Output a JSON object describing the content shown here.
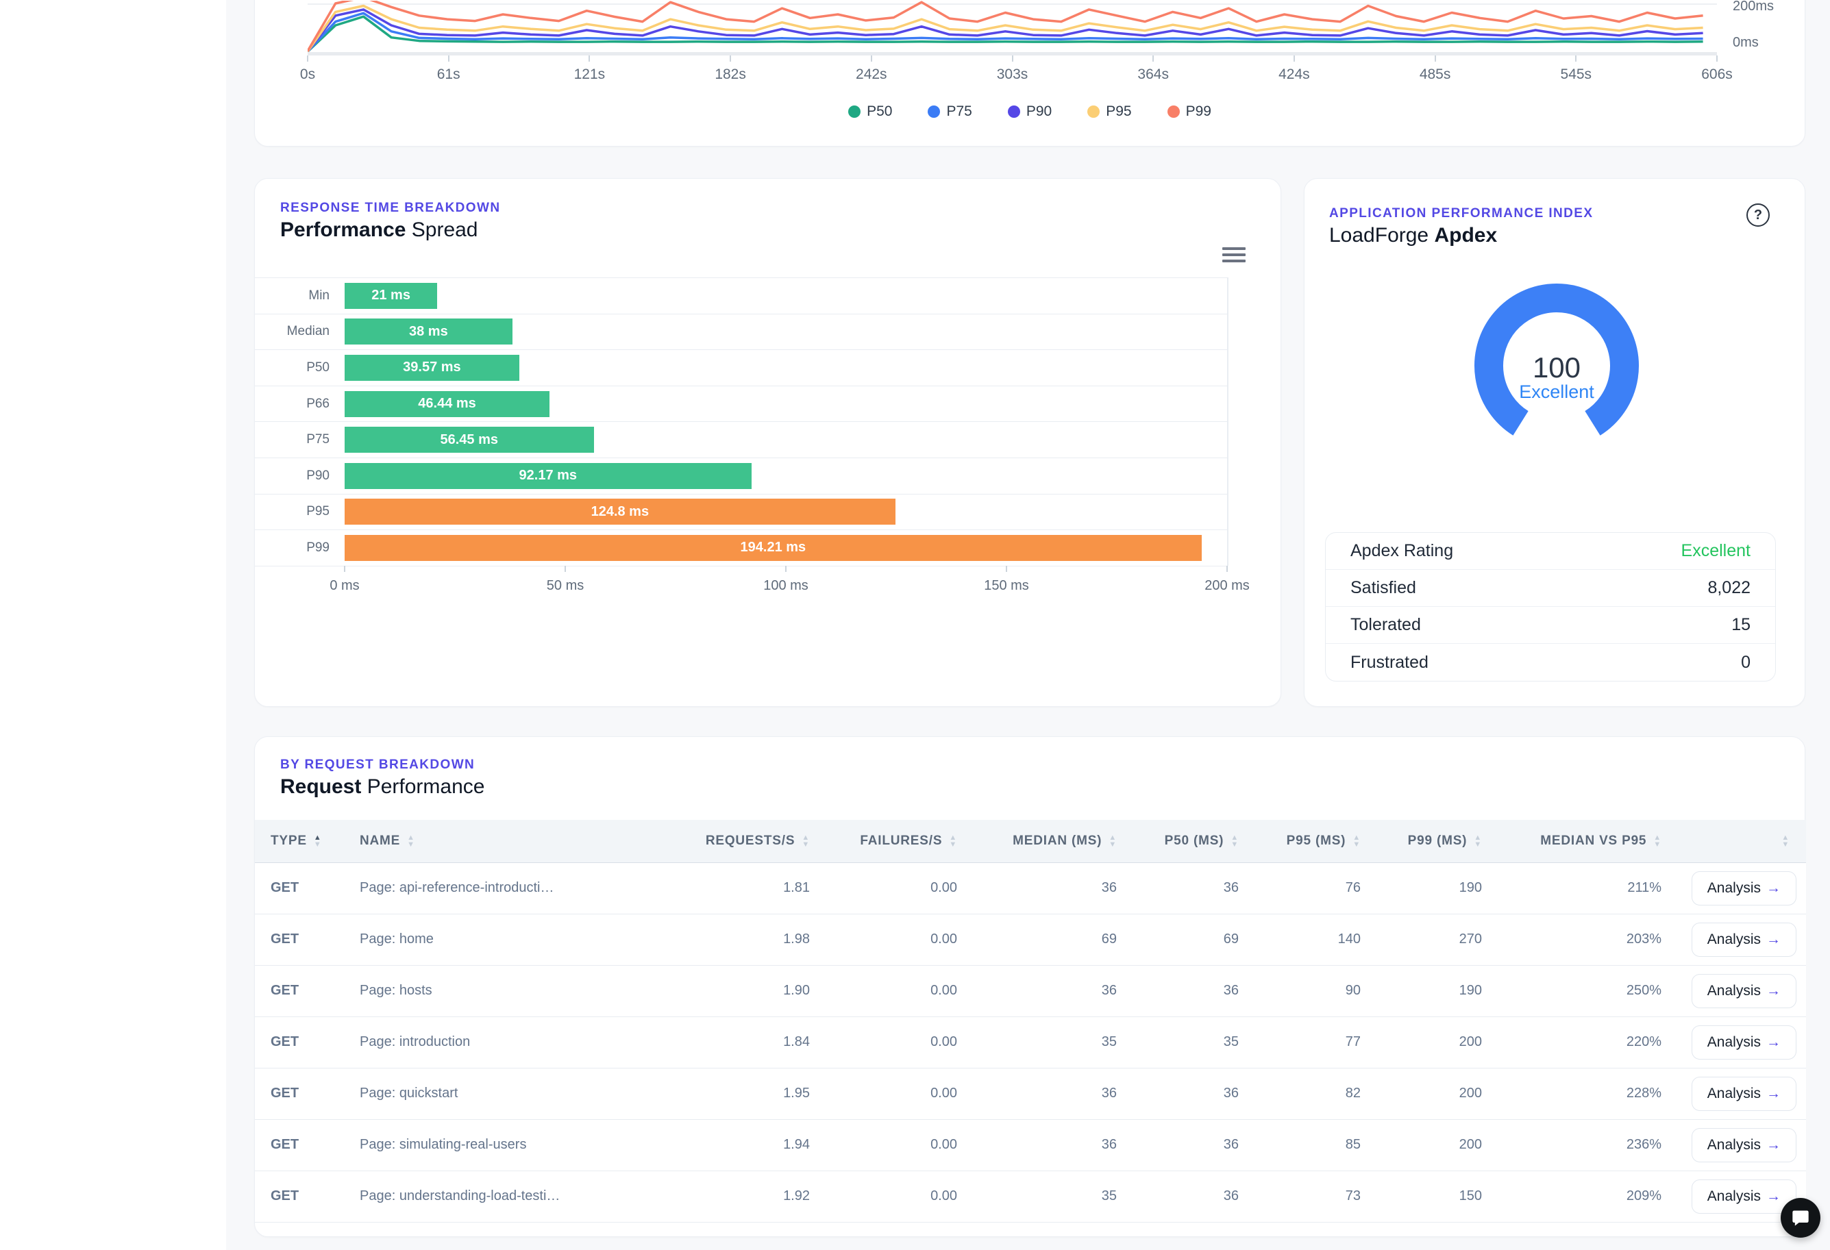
{
  "accent_colors": {
    "indigo_label": "#5348e4",
    "bar_green": "#3ec28d",
    "bar_orange": "#f79347",
    "gauge_blue": "#3d80f6",
    "excellent_green": "#23c45e",
    "mvp_cell_bg": "#bbf3cf",
    "page_bg": "#f7f8fa"
  },
  "top_chart": {
    "y_axis_labels_right": [
      "200ms",
      "0ms"
    ],
    "x_tick_labels": [
      "0s",
      "61s",
      "121s",
      "182s",
      "242s",
      "303s",
      "364s",
      "424s",
      "485s",
      "545s",
      "606s"
    ],
    "legend": [
      {
        "label": "P50",
        "color": "#1fa883"
      },
      {
        "label": "P75",
        "color": "#3b7cf5"
      },
      {
        "label": "P90",
        "color": "#5547e6"
      },
      {
        "label": "P95",
        "color": "#fbce74"
      },
      {
        "label": "P99",
        "color": "#f87f67"
      }
    ]
  },
  "chart_data": [
    {
      "type": "line",
      "title": "Response time percentiles over test duration",
      "xlabel_unit": "s",
      "ylabel_unit": "ms",
      "x_range": [
        0,
        606
      ],
      "y_visible_range": [
        0,
        200
      ],
      "x_ticks": [
        0,
        61,
        121,
        182,
        242,
        303,
        364,
        424,
        485,
        545,
        606
      ],
      "x_step_s": 12,
      "grid": true,
      "legend_position": "bottom",
      "series": [
        {
          "name": "P50",
          "color": "#1fa883",
          "values": [
            2,
            110,
            146,
            60,
            46,
            44,
            43,
            42,
            43,
            42,
            42,
            43,
            42,
            42,
            43,
            42,
            42,
            43,
            42,
            43,
            42,
            42,
            43,
            42,
            42,
            43,
            42,
            42,
            43,
            42,
            42,
            43,
            42,
            43,
            42,
            42,
            43,
            42,
            42,
            43,
            42,
            42,
            43,
            42,
            42,
            43,
            42,
            42,
            43,
            42,
            43
          ]
        },
        {
          "name": "P75",
          "color": "#3b7cf5",
          "values": [
            2,
            125,
            160,
            85,
            58,
            55,
            53,
            56,
            54,
            53,
            57,
            55,
            53,
            60,
            56,
            54,
            53,
            57,
            54,
            56,
            53,
            55,
            58,
            54,
            53,
            56,
            54,
            53,
            57,
            55,
            53,
            56,
            54,
            57,
            53,
            55,
            54,
            53,
            58,
            55,
            53,
            56,
            54,
            53,
            57,
            54,
            55,
            53,
            56,
            54,
            55
          ]
        },
        {
          "name": "P90",
          "color": "#5547e6",
          "values": [
            2,
            150,
            175,
            110,
            75,
            70,
            68,
            80,
            72,
            68,
            90,
            75,
            68,
            105,
            85,
            70,
            68,
            95,
            72,
            80,
            70,
            74,
            105,
            72,
            68,
            85,
            70,
            68,
            92,
            78,
            68,
            88,
            72,
            95,
            68,
            80,
            70,
            68,
            98,
            78,
            68,
            85,
            72,
            68,
            90,
            72,
            78,
            68,
            86,
            72,
            78
          ]
        },
        {
          "name": "P95",
          "color": "#fbce74",
          "values": [
            2,
            165,
            190,
            135,
            100,
            92,
            88,
            105,
            95,
            88,
            115,
            98,
            88,
            135,
            110,
            92,
            88,
            122,
            95,
            105,
            90,
            96,
            135,
            94,
            88,
            110,
            92,
            88,
            118,
            102,
            88,
            112,
            94,
            122,
            88,
            104,
            92,
            88,
            126,
            100,
            88,
            110,
            94,
            88,
            115,
            94,
            100,
            88,
            110,
            94,
            100
          ]
        },
        {
          "name": "P99",
          "color": "#f87f67",
          "values": [
            4,
            200,
            225,
            185,
            150,
            135,
            128,
            155,
            140,
            128,
            170,
            145,
            125,
            205,
            165,
            135,
            125,
            180,
            140,
            155,
            130,
            142,
            205,
            138,
            125,
            162,
            135,
            125,
            175,
            150,
            125,
            165,
            140,
            180,
            125,
            155,
            135,
            125,
            190,
            148,
            125,
            162,
            140,
            125,
            170,
            138,
            148,
            125,
            162,
            138,
            150
          ]
        }
      ]
    },
    {
      "type": "bar",
      "title": "Performance Spread",
      "orientation": "horizontal",
      "categories": [
        "Min",
        "Median",
        "P50",
        "P66",
        "P75",
        "P90",
        "P95",
        "P99"
      ],
      "values": [
        21,
        38,
        39.57,
        46.44,
        56.45,
        92.17,
        124.8,
        194.21
      ],
      "value_labels": [
        "21 ms",
        "38 ms",
        "39.57 ms",
        "46.44 ms",
        "56.45 ms",
        "92.17 ms",
        "124.8 ms",
        "194.21 ms"
      ],
      "bar_colors": [
        "green",
        "green",
        "green",
        "green",
        "green",
        "green",
        "orange",
        "orange"
      ],
      "xlabel": "",
      "ylabel": "",
      "xlim": [
        0,
        200
      ],
      "x_tick_labels": [
        "0 ms",
        "50 ms",
        "100 ms",
        "150 ms",
        "200 ms"
      ]
    },
    {
      "type": "gauge",
      "title": "LoadForge Apdex",
      "value": 100,
      "max": 100,
      "rating": "Excellent",
      "color": "#3d80f6"
    }
  ],
  "spread": {
    "section_label": "Response Time Breakdown",
    "title_bold": "Performance",
    "title_rest": " Spread"
  },
  "apdex": {
    "section_label": "Application Performance Index",
    "title_regular": "LoadForge ",
    "title_bold": "Apdex",
    "help_glyph": "?",
    "gauge_value": "100",
    "gauge_rating": "Excellent",
    "rows": [
      {
        "label": "Apdex Rating",
        "value": "Excellent",
        "green": true
      },
      {
        "label": "Satisfied",
        "value": "8,022",
        "green": false
      },
      {
        "label": "Tolerated",
        "value": "15",
        "green": false
      },
      {
        "label": "Frustrated",
        "value": "0",
        "green": false
      }
    ]
  },
  "requests": {
    "section_label": "By Request Breakdown",
    "title_bold": "Request",
    "title_rest": " Performance",
    "action_label": "Analysis",
    "action_arrow": "→",
    "columns": [
      {
        "label": "Type",
        "align": "left",
        "sort": "asc"
      },
      {
        "label": "Name",
        "align": "left",
        "sort": "none"
      },
      {
        "label": "Requests/s",
        "align": "right",
        "sort": "none"
      },
      {
        "label": "Failures/s",
        "align": "right",
        "sort": "none"
      },
      {
        "label": "Median (ms)",
        "align": "right",
        "sort": "none"
      },
      {
        "label": "P50 (ms)",
        "align": "right",
        "sort": "none"
      },
      {
        "label": "P95 (ms)",
        "align": "right",
        "sort": "none"
      },
      {
        "label": "P99 (ms)",
        "align": "right",
        "sort": "none"
      },
      {
        "label": "Median vs P95",
        "align": "right",
        "sort": "none"
      },
      {
        "label": "",
        "align": "right",
        "sort": "none"
      }
    ],
    "rows": [
      {
        "type": "GET",
        "name": "Page: api-reference-introducti…",
        "rps": "1.81",
        "fps": "0.00",
        "median": "36",
        "p50": "36",
        "p95": "76",
        "p99": "190",
        "mvp": "211%"
      },
      {
        "type": "GET",
        "name": "Page: home",
        "rps": "1.98",
        "fps": "0.00",
        "median": "69",
        "p50": "69",
        "p95": "140",
        "p99": "270",
        "mvp": "203%"
      },
      {
        "type": "GET",
        "name": "Page: hosts",
        "rps": "1.90",
        "fps": "0.00",
        "median": "36",
        "p50": "36",
        "p95": "90",
        "p99": "190",
        "mvp": "250%"
      },
      {
        "type": "GET",
        "name": "Page: introduction",
        "rps": "1.84",
        "fps": "0.00",
        "median": "35",
        "p50": "35",
        "p95": "77",
        "p99": "200",
        "mvp": "220%"
      },
      {
        "type": "GET",
        "name": "Page: quickstart",
        "rps": "1.95",
        "fps": "0.00",
        "median": "36",
        "p50": "36",
        "p95": "82",
        "p99": "200",
        "mvp": "228%"
      },
      {
        "type": "GET",
        "name": "Page: simulating-real-users",
        "rps": "1.94",
        "fps": "0.00",
        "median": "36",
        "p50": "36",
        "p95": "85",
        "p99": "200",
        "mvp": "236%"
      },
      {
        "type": "GET",
        "name": "Page: understanding-load-testi…",
        "rps": "1.92",
        "fps": "0.00",
        "median": "35",
        "p50": "36",
        "p95": "73",
        "p99": "150",
        "mvp": "209%"
      }
    ]
  }
}
